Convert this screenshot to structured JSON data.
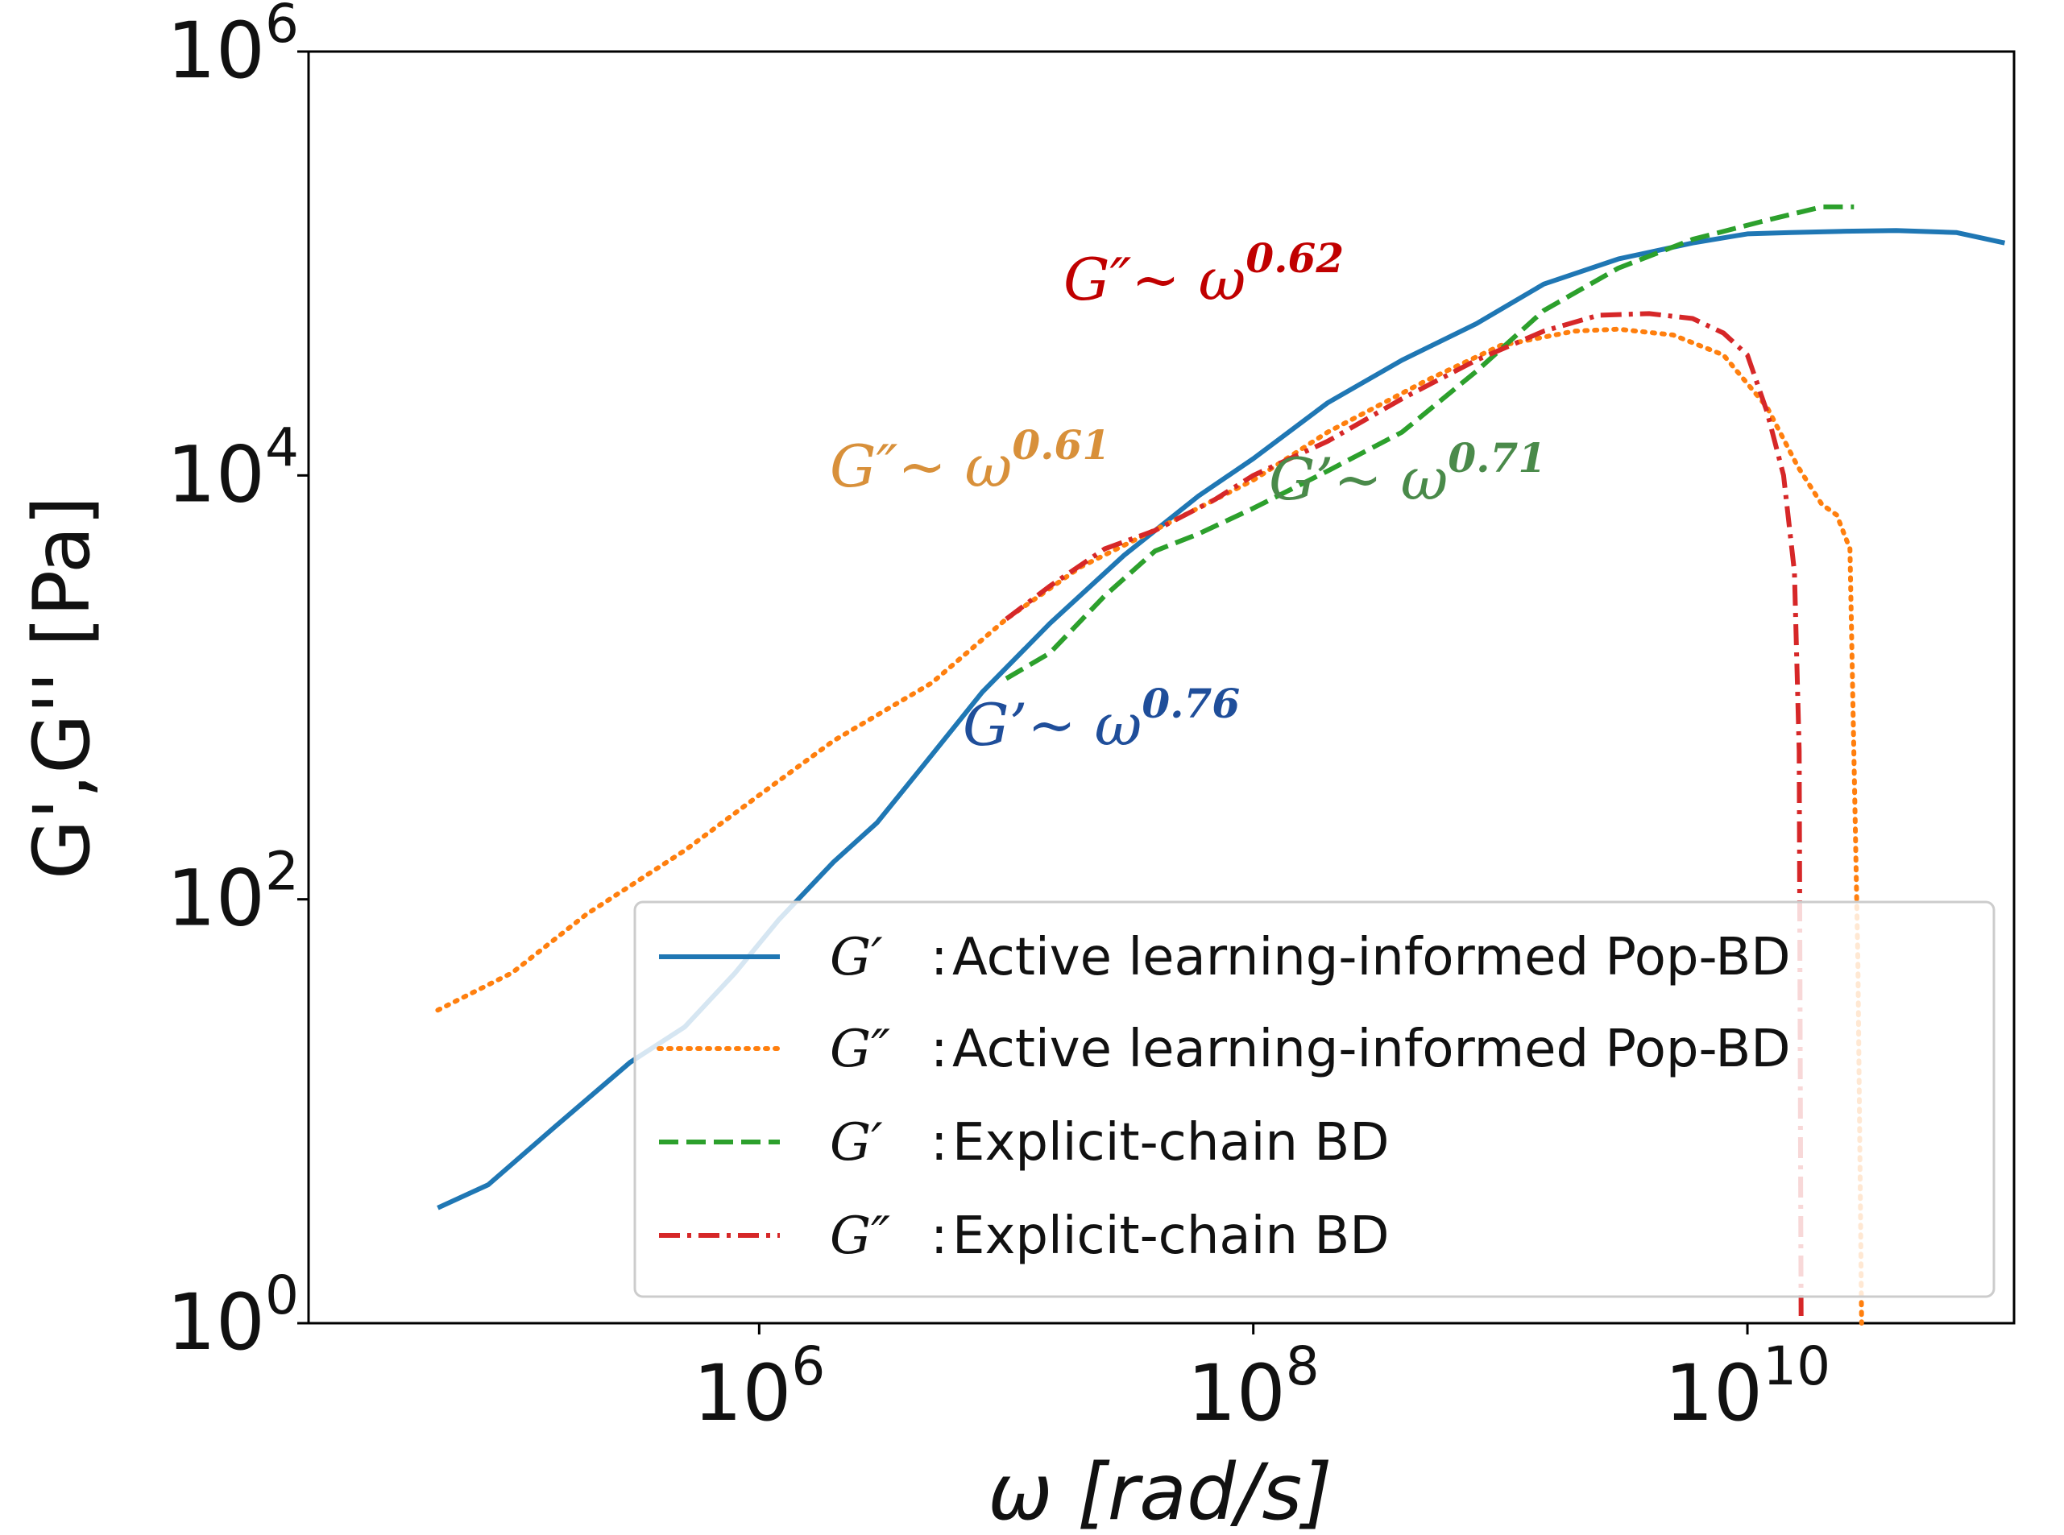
{
  "chart_data": {
    "type": "line",
    "x_scale": "log",
    "y_scale": "log",
    "xlim": [
      15000,
      120000000000
    ],
    "ylim": [
      1,
      1000000
    ],
    "xlabel_symbol": "ω",
    "xlabel_unit": "[rad/s]",
    "ylabel": "G',G'' [Pa]",
    "x_ticks": [
      {
        "value": 1000000,
        "base": "10",
        "exp": "6"
      },
      {
        "value": 100000000,
        "base": "10",
        "exp": "8"
      },
      {
        "value": 10000000000,
        "base": "10",
        "exp": "10"
      }
    ],
    "y_ticks": [
      {
        "value": 1,
        "base": "10",
        "exp": "0"
      },
      {
        "value": 100,
        "base": "10",
        "exp": "2"
      },
      {
        "value": 10000,
        "base": "10",
        "exp": "4"
      },
      {
        "value": 1000000,
        "base": "10",
        "exp": "6"
      }
    ],
    "series": [
      {
        "name": "Active learning-informed Pop-BD",
        "symbol": "G′",
        "color": "#1f77b4",
        "style": "solid",
        "x": [
          50000,
          80000,
          150000,
          300000,
          500000,
          800000,
          1200000,
          2000000,
          3000000,
          5000000,
          8000000,
          15000000,
          30000000,
          60000000,
          100000000,
          200000000,
          400000000,
          800000000,
          1500000000,
          3000000000,
          6000000000,
          10000000000,
          15000000000,
          25000000000,
          40000000000,
          70000000000,
          110000000000
        ],
        "y": [
          3.5,
          4.5,
          8.5,
          17,
          25,
          45,
          80,
          150,
          230,
          480,
          950,
          2000,
          4200,
          8000,
          12000,
          22000,
          35000,
          52000,
          80000,
          105000,
          125000,
          138000,
          140000,
          142000,
          143000,
          140000,
          125000
        ]
      },
      {
        "name": "Active learning-informed Pop-BD",
        "symbol": "G″",
        "color": "#ff7f0e",
        "style": "dotted",
        "x": [
          50000,
          100000,
          200000,
          500000,
          1000000,
          2000000,
          5000000,
          10000000,
          20000000,
          50000000,
          100000000,
          200000000,
          500000000,
          1000000000,
          2000000000,
          3000000000,
          5000000000,
          8000000000,
          12000000000,
          16000000000,
          20000000000,
          23000000000,
          26000000000,
          28000000000,
          29000000000
        ],
        "y": [
          30,
          45,
          85,
          170,
          310,
          560,
          1050,
          2100,
          3700,
          6300,
          9500,
          16000,
          28000,
          41000,
          48000,
          49000,
          46000,
          37000,
          21000,
          11000,
          7300,
          6500,
          4500,
          50,
          1
        ]
      },
      {
        "name": "Explicit-chain BD",
        "symbol": "G′",
        "color": "#2ca02c",
        "style": "dashed",
        "x": [
          10000000,
          15000000,
          25000000,
          40000000,
          60000000,
          100000000,
          200000000,
          400000000,
          800000000,
          1500000000,
          3000000000,
          6000000000,
          12000000000,
          20000000000,
          27000000000
        ],
        "y": [
          1100,
          1450,
          2700,
          4400,
          5300,
          7000,
          10500,
          16000,
          31000,
          60000,
          95000,
          130000,
          160000,
          185000,
          185000
        ]
      },
      {
        "name": "Explicit-chain BD",
        "symbol": "G″",
        "color": "#d62728",
        "style": "dashdot",
        "x": [
          10000000,
          15000000,
          25000000,
          40000000,
          70000000,
          100000000,
          200000000,
          400000000,
          800000000,
          1500000000,
          2500000000,
          4000000000,
          6000000000,
          8000000000,
          10000000000,
          12000000000,
          14000000000,
          15500000000,
          16200000000,
          16500000000
        ],
        "y": [
          2100,
          3000,
          4500,
          5500,
          7700,
          10000,
          14500,
          23000,
          35000,
          48000,
          57000,
          58000,
          55000,
          47000,
          37000,
          20000,
          10000,
          3500,
          500,
          1
        ]
      }
    ],
    "legend": {
      "position": "lower-right",
      "entries": [
        {
          "symbol": "G′",
          "label": "Active learning-informed Pop-BD",
          "series_index": 0
        },
        {
          "symbol": "G″",
          "label": "Active learning-informed Pop-BD",
          "series_index": 1
        },
        {
          "symbol": "G′",
          "label": "Explicit-chain BD",
          "series_index": 2
        },
        {
          "symbol": "G″",
          "label": "Explicit-chain BD",
          "series_index": 3
        }
      ]
    },
    "annotations": [
      {
        "text": "G″~ ω",
        "exponent": "0.62",
        "color": "#c00000"
      },
      {
        "text": "G″~ ω",
        "exponent": "0.61",
        "color": "#d8903a"
      },
      {
        "text": "G’~ ω",
        "exponent": "0.71",
        "color": "#4a8a4a"
      },
      {
        "text": "G’~ ω",
        "exponent": "0.76",
        "color": "#1f4e9a"
      }
    ]
  }
}
